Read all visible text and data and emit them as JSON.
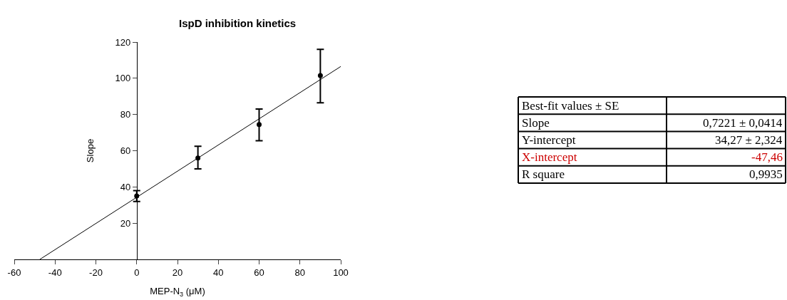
{
  "chart_data": [
    {
      "type": "scatter",
      "title": "IspD inhibition kinetics",
      "xlabel": "MEP-N$_{3}$ (μM)",
      "ylabel": "Slope",
      "xlim": [
        -60,
        100
      ],
      "xticks": [
        -60,
        -40,
        -20,
        0,
        20,
        40,
        60,
        80,
        100
      ],
      "ylim": [
        0,
        120
      ],
      "yticks": [
        {
          "value": 0,
          "label": null
        },
        20,
        40,
        60,
        80,
        100,
        120
      ],
      "series": [
        {
          "type": "scatter",
          "color": "#000000",
          "marker": "circle",
          "x": [
            0,
            30,
            60,
            90
          ],
          "values": [
            35,
            56,
            74.5,
            101.5
          ],
          "errors": [
            [
              32,
              38
            ],
            [
              50,
              62.5
            ],
            [
              65.5,
              83
            ],
            [
              86.5,
              116
            ]
          ]
        },
        {
          "type": "line",
          "color": "#000000",
          "x": [
            -47.46,
            100
          ],
          "values": [
            0,
            106.5
          ],
          "marker": "none"
        }
      ]
    },
    {
      "type": "other",
      "annotations": [
        "Best-fit values ± SE",
        "Slope",
        "0,7221 ± 0,0414",
        "Y-intercept",
        "34,27 ± 2,324",
        "X-intercept",
        "-47,46",
        "R square",
        "0,9935"
      ],
      "colors": [
        "#000000",
        "#000000",
        "#000000",
        "#000000",
        "#000000",
        "#cc0000",
        "#cc0000",
        "#000000",
        "#000000"
      ]
    }
  ]
}
